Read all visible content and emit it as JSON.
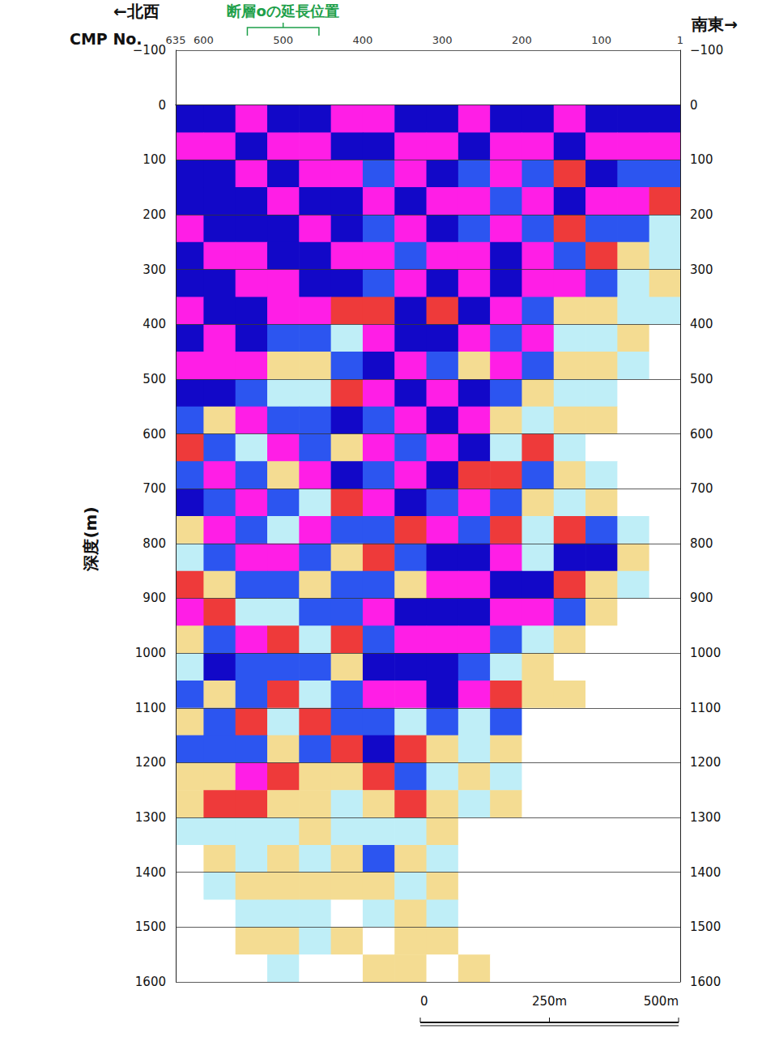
{
  "chart_data": {
    "type": "heatmap",
    "xlabel": "CMP No.",
    "ylabel": "深度(m)",
    "annotations": {
      "northwest": "←北西",
      "southeast": "南東→",
      "fault_label": "断層oの延長位置"
    },
    "fault_extension_cmp": [
      545,
      455
    ],
    "scale_bar": [
      "0",
      "250m",
      "500m"
    ],
    "xlim": [
      635,
      1
    ],
    "xticks": [
      635,
      600,
      500,
      400,
      300,
      200,
      100,
      1
    ],
    "ylim": [
      1600,
      -100
    ],
    "yticks": [
      {
        "value": -100,
        "label": "−100"
      },
      0,
      100,
      200,
      300,
      400,
      500,
      600,
      700,
      800,
      900,
      1000,
      1100,
      1200,
      1300,
      1400,
      1500,
      1600
    ],
    "grid": true,
    "cmp_edges": [
      635,
      600,
      560,
      520,
      480,
      440,
      400,
      360,
      320,
      280,
      240,
      200,
      160,
      120,
      80,
      40,
      1
    ],
    "depth_edges": [
      0,
      50,
      100,
      150,
      200,
      250,
      300,
      350,
      400,
      450,
      500,
      550,
      600,
      650,
      700,
      750,
      800,
      850,
      900,
      950,
      1000,
      1050,
      1100,
      1150,
      1200,
      1250,
      1300,
      1350,
      1400,
      1450,
      1500,
      1550,
      1600
    ],
    "amplitude_range": [
      -3,
      3
    ],
    "amplitude": [
      [
        -3,
        -3,
        3,
        -3,
        -3,
        3,
        3,
        -3,
        -3,
        3,
        -3,
        -3,
        3,
        -3,
        -3,
        -3
      ],
      [
        3,
        3,
        -3,
        3,
        3,
        -3,
        -3,
        3,
        3,
        -3,
        3,
        3,
        -3,
        3,
        3,
        3
      ],
      [
        -3,
        -3,
        3,
        -3,
        3,
        3,
        -2,
        3,
        -3,
        -2,
        3,
        -2,
        2,
        -3,
        -2,
        -2
      ],
      [
        -3,
        -3,
        -3,
        3,
        -3,
        -3,
        3,
        -3,
        3,
        3,
        -2,
        3,
        -3,
        3,
        3,
        2
      ],
      [
        3,
        -3,
        -3,
        -3,
        3,
        -3,
        -2,
        3,
        -3,
        -2,
        3,
        -2,
        2,
        -2,
        -2,
        -1
      ],
      [
        -3,
        3,
        3,
        -3,
        -3,
        3,
        3,
        -2,
        3,
        3,
        -3,
        3,
        -2,
        2,
        1,
        -1
      ],
      [
        -3,
        -3,
        3,
        3,
        -3,
        -3,
        -2,
        3,
        -3,
        3,
        -3,
        3,
        3,
        -2,
        -1,
        1
      ],
      [
        3,
        -3,
        -3,
        3,
        3,
        2,
        2,
        -3,
        2,
        -3,
        3,
        -2,
        1,
        1,
        -1,
        -1
      ],
      [
        -3,
        3,
        -3,
        -2,
        -2,
        -1,
        3,
        -3,
        -3,
        3,
        -2,
        3,
        -1,
        -1,
        1,
        0
      ],
      [
        3,
        3,
        3,
        1,
        1,
        -2,
        -3,
        3,
        -2,
        1,
        3,
        -2,
        1,
        1,
        -1,
        0
      ],
      [
        -3,
        -3,
        -2,
        -1,
        -1,
        2,
        3,
        -3,
        3,
        -3,
        -2,
        1,
        -1,
        -1,
        0,
        0
      ],
      [
        -2,
        1,
        3,
        -2,
        -2,
        -3,
        -2,
        3,
        -3,
        3,
        1,
        -1,
        1,
        1,
        0,
        0
      ],
      [
        2,
        -2,
        -1,
        3,
        -2,
        1,
        3,
        -2,
        3,
        -3,
        -1,
        2,
        -1,
        0,
        0,
        0
      ],
      [
        -2,
        3,
        -2,
        1,
        3,
        -3,
        -2,
        3,
        -3,
        2,
        2,
        -2,
        1,
        -1,
        0,
        0
      ],
      [
        -3,
        -2,
        3,
        -2,
        -1,
        2,
        3,
        -3,
        -2,
        3,
        -2,
        1,
        -1,
        1,
        0,
        0
      ],
      [
        1,
        3,
        -2,
        -1,
        3,
        -2,
        -2,
        2,
        3,
        -2,
        2,
        -1,
        2,
        -2,
        -1,
        0
      ],
      [
        -1,
        -2,
        3,
        3,
        -2,
        1,
        2,
        -2,
        -3,
        -3,
        3,
        -1,
        -3,
        -3,
        1,
        0
      ],
      [
        2,
        1,
        -2,
        -2,
        1,
        -2,
        -2,
        1,
        3,
        3,
        -3,
        -3,
        2,
        1,
        -1,
        0
      ],
      [
        3,
        2,
        -1,
        -1,
        -2,
        -2,
        3,
        -3,
        -3,
        -3,
        3,
        3,
        -2,
        1,
        0,
        0
      ],
      [
        1,
        -2,
        3,
        2,
        -1,
        2,
        -2,
        3,
        3,
        3,
        -2,
        -1,
        1,
        0,
        0,
        0
      ],
      [
        -1,
        -3,
        -2,
        -2,
        -2,
        1,
        -3,
        -3,
        -3,
        -2,
        -1,
        1,
        0,
        0,
        0,
        0
      ],
      [
        -2,
        1,
        -2,
        2,
        -1,
        -2,
        3,
        3,
        -3,
        3,
        2,
        1,
        1,
        0,
        0,
        0
      ],
      [
        1,
        -2,
        2,
        -1,
        2,
        -2,
        -2,
        -1,
        -2,
        -1,
        -2,
        0,
        0,
        0,
        0,
        0
      ],
      [
        -2,
        -2,
        -2,
        1,
        -2,
        2,
        -3,
        2,
        1,
        -1,
        1,
        0,
        0,
        0,
        0,
        0
      ],
      [
        1,
        1,
        3,
        2,
        1,
        1,
        2,
        -2,
        -1,
        1,
        -1,
        0,
        0,
        0,
        0,
        0
      ],
      [
        1,
        2,
        2,
        1,
        1,
        -1,
        1,
        2,
        1,
        -1,
        1,
        0,
        0,
        0,
        0,
        0
      ],
      [
        -1,
        -1,
        -1,
        -1,
        1,
        -1,
        -1,
        -1,
        1,
        0,
        0,
        0,
        0,
        0,
        0,
        0
      ],
      [
        0,
        1,
        -1,
        1,
        -1,
        1,
        -2,
        1,
        -1,
        0,
        0,
        0,
        0,
        0,
        0,
        0
      ],
      [
        0,
        -1,
        1,
        1,
        1,
        1,
        1,
        -1,
        1,
        0,
        0,
        0,
        0,
        0,
        0,
        0
      ],
      [
        0,
        0,
        -1,
        -1,
        -1,
        0,
        -1,
        1,
        -1,
        0,
        0,
        0,
        0,
        0,
        0,
        0
      ],
      [
        0,
        0,
        1,
        1,
        -1,
        1,
        0,
        1,
        1,
        0,
        0,
        0,
        0,
        0,
        0,
        0
      ],
      [
        0,
        0,
        0,
        -1,
        0,
        0,
        1,
        1,
        0,
        1,
        0,
        0,
        0,
        0,
        0,
        0
      ]
    ]
  }
}
